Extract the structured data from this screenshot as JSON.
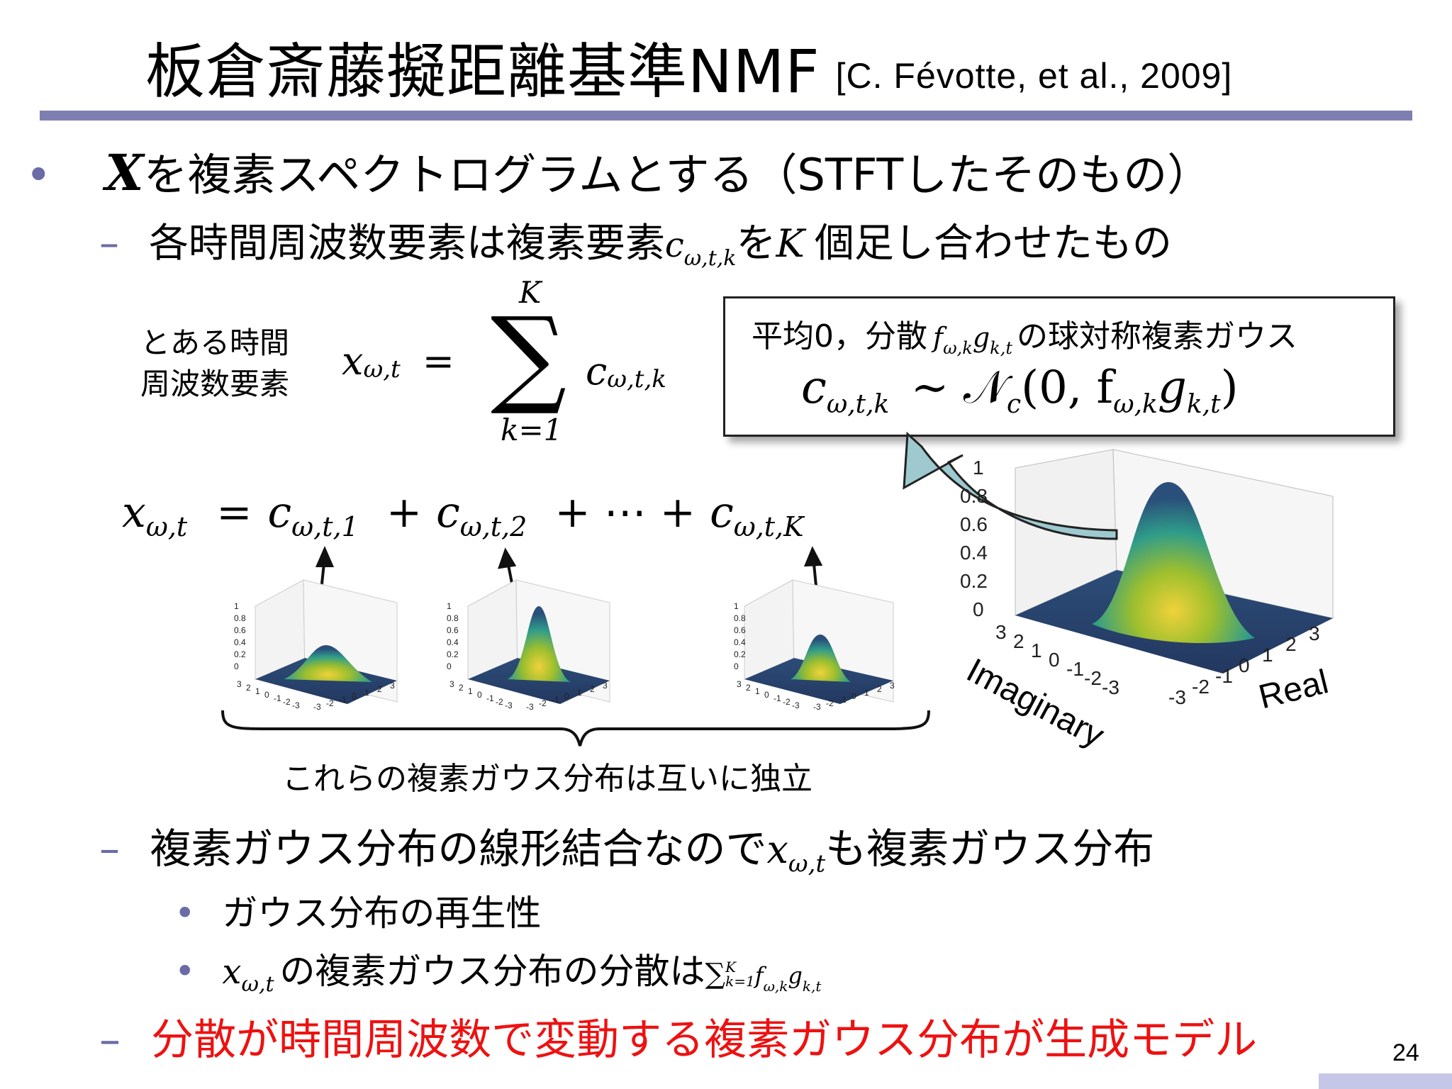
{
  "title": {
    "main": "板倉斎藤擬距離基準NMF",
    "citation": "[C. Févotte, et al., 2009]"
  },
  "bullet1": {
    "symbol": "X",
    "text": "を複素スペクトログラムとする（STFTしたそのもの）"
  },
  "bullet2": {
    "pre": "各時間周波数要素は複素要素",
    "c": "c",
    "c_sub": "ω,t,k",
    "mid": "を",
    "K": "K",
    "post": "個足し合わせたもの"
  },
  "eq1": {
    "label": "とある時間 周波数要素",
    "lhs": "x",
    "lhs_sub": "ω,t",
    "equals": "=",
    "sigma": "∑",
    "upper": "K",
    "lower": "k=1",
    "rhs": "c",
    "rhs_sub": "ω,t,k"
  },
  "box": {
    "line1_pre": "平均0，分散",
    "fg": "f",
    "fg_sub1": "ω,k",
    "g": "g",
    "g_sub": "k,t",
    "line1_post": "の球対称複素ガウス",
    "line2": "c",
    "line2_sub": "ω,t,k",
    "line2_rest": "∼ 𝒩",
    "nc_sub": "c",
    "line2_args": "(0, f",
    "args_sub": "ω,k",
    "g2": "g",
    "g2_sub": "k,t",
    "close": ")"
  },
  "eq2": {
    "x": "x",
    "x_sub": "ω,t",
    "eq": "=",
    "c1": "c",
    "c1_sub": "ω,t,1",
    "plus": "+",
    "c2": "c",
    "c2_sub": "ω,t,2",
    "dots": "+ ⋯ +",
    "cK": "c",
    "cK_sub": "ω,t,K"
  },
  "small_plot_ticks": {
    "z": [
      "1",
      "0.8",
      "0.6",
      "0.4",
      "0.2",
      "0"
    ],
    "left": [
      "3",
      "2",
      "1",
      "0",
      "-1",
      "-2",
      "-3"
    ],
    "right": [
      "-3",
      "-2",
      "-1",
      "0",
      "1",
      "2",
      "3"
    ]
  },
  "big_plot": {
    "z_ticks": [
      "1",
      "0.8",
      "0.6",
      "0.4",
      "0.2",
      "0"
    ],
    "left_ticks": [
      "3",
      "2",
      "1",
      "0",
      "-1",
      "-2",
      "-3"
    ],
    "right_ticks": [
      "-3",
      "-2",
      "-1",
      "0",
      "1",
      "2",
      "3"
    ],
    "xlabel": "Imaginary",
    "ylabel": "Real"
  },
  "independence": "これらの複素ガウス分布は互いに独立",
  "bullet3": {
    "pre": "複素ガウス分布の線形結合なので",
    "x": "x",
    "x_sub": "ω,t",
    "post": "も複素ガウス分布"
  },
  "bullet4": "ガウス分布の再生性",
  "bullet5": {
    "x": "x",
    "x_sub": "ω,t",
    "mid": "の複素ガウス分布の分散は",
    "sum": "∑",
    "sum_upper": "K",
    "sum_lower": "k=1",
    "f": "f",
    "f_sub": "ω,k",
    "g": "g",
    "g_sub": "k,t"
  },
  "bullet6": "分散が時間周波数で変動する複素ガウス分布が生成モデル",
  "page_number": "24",
  "colors": {
    "accent": "#7e7fb0",
    "bullet": "#6b6ba8",
    "highlight": "#ee1111",
    "arrow_fill": "#9dc9cf"
  }
}
